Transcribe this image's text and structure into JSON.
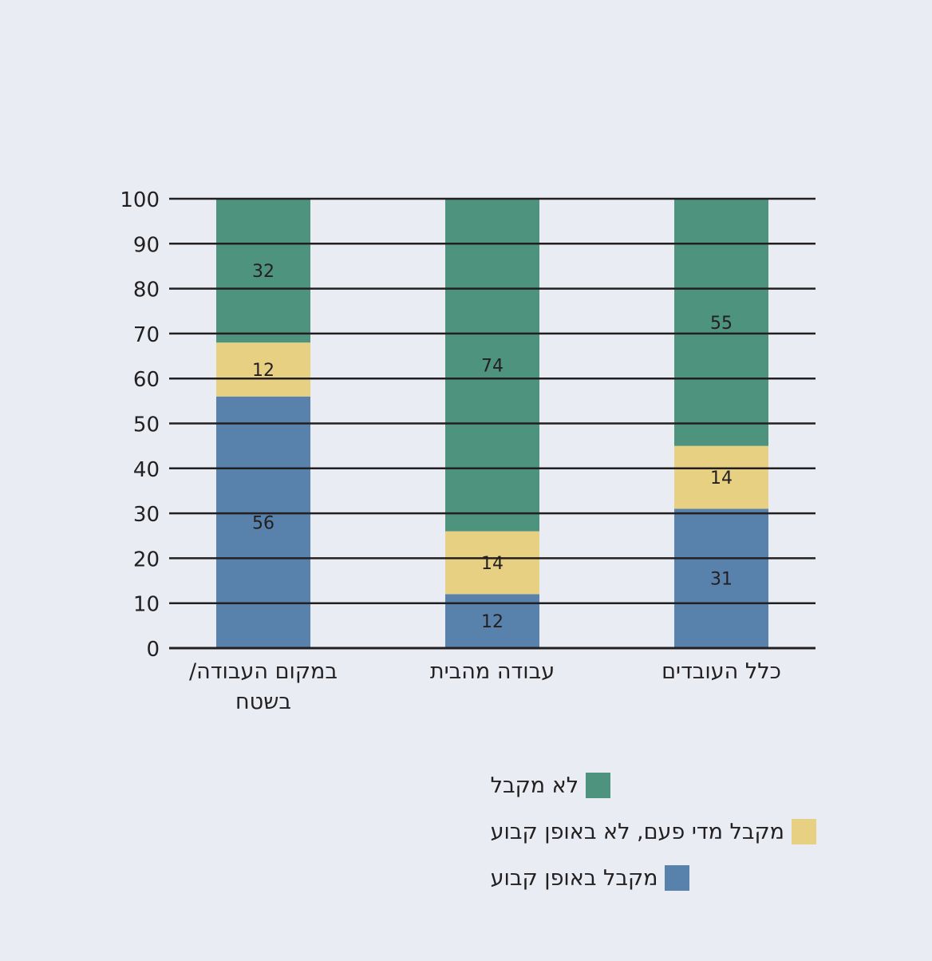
{
  "chart_data": {
    "type": "bar",
    "stacked": true,
    "categories": [
      "במקום העבודה/ בשטח",
      "עבודה מהבית",
      "כלל העובדים"
    ],
    "category_lines": [
      [
        "במקום העבודה/",
        "בשטח"
      ],
      [
        "עבודה מהבית"
      ],
      [
        "כלל העובדים"
      ]
    ],
    "series": [
      {
        "name": "מקבל באופן קבוע",
        "color": "#5882ab",
        "values": [
          56,
          12,
          31
        ]
      },
      {
        "name": "מקבל מדי פעם, לא באופן קבוע",
        "color": "#e8d083",
        "values": [
          12,
          14,
          14
        ]
      },
      {
        "name": "לא מקבל",
        "color": "#4e937d",
        "values": [
          32,
          74,
          55
        ]
      }
    ],
    "ylim": [
      0,
      100
    ],
    "yticks": [
      0,
      10,
      20,
      30,
      40,
      50,
      60,
      70,
      80,
      90,
      100
    ],
    "grid": true,
    "legend_position": "bottom-right",
    "legend_order": [
      2,
      1,
      0
    ]
  }
}
